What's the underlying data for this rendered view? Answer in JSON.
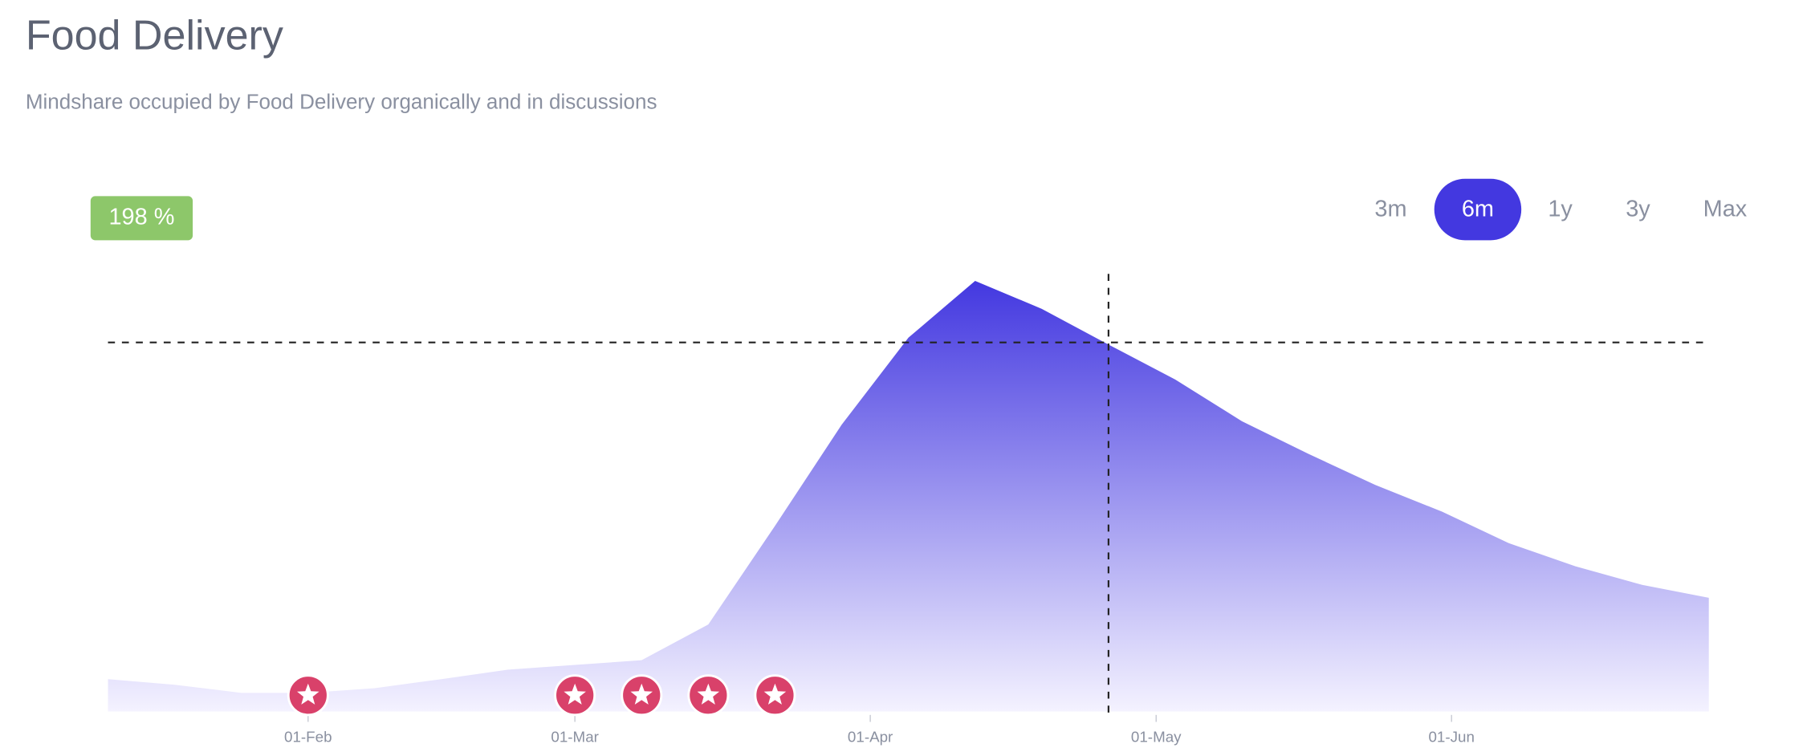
{
  "header": {
    "title": "Food Delivery",
    "subtitle": "Mindshare occupied by Food Delivery organically and in discussions"
  },
  "range_buttons": [
    "3m",
    "6m",
    "1y",
    "3y",
    "Max"
  ],
  "active_range": "6m",
  "chart_data": {
    "type": "area",
    "badge": "198 %",
    "x": [
      "11-Jan",
      "18-Jan",
      "25-Jan",
      "01-Feb",
      "08-Feb",
      "15-Feb",
      "22-Feb",
      "01-Mar",
      "08-Mar",
      "15-Mar",
      "22-Mar",
      "29-Mar",
      "05-Apr",
      "12-Apr",
      "19-Apr",
      "26-Apr",
      "03-May",
      "10-May",
      "17-May",
      "24-May",
      "31-May",
      "07-Jun",
      "14-Jun",
      "21-Jun",
      "28-Jun"
    ],
    "values": [
      7.5,
      6.2,
      4.3,
      4.3,
      5.4,
      7.5,
      9.7,
      10.8,
      11.9,
      20.2,
      43.1,
      66.6,
      86.8,
      100,
      93.5,
      85.2,
      77.1,
      67.4,
      59.8,
      52.6,
      46.4,
      39.1,
      33.7,
      29.4,
      26.4
    ],
    "color_top": "#4338e0",
    "color_bottom": "#f4f2ff",
    "xlim": [
      "11-Jan",
      "28-Jun"
    ],
    "xticks": [
      "01-Feb",
      "01-Mar",
      "01-Apr",
      "01-May",
      "01-Jun"
    ],
    "ylim": [
      0,
      100
    ],
    "reference_line": 85.7,
    "cursor_x": "26-Apr",
    "events": [
      "01-Feb",
      "01-Mar",
      "08-Mar",
      "15-Mar",
      "22-Mar"
    ],
    "event_color": "#d9416a"
  }
}
